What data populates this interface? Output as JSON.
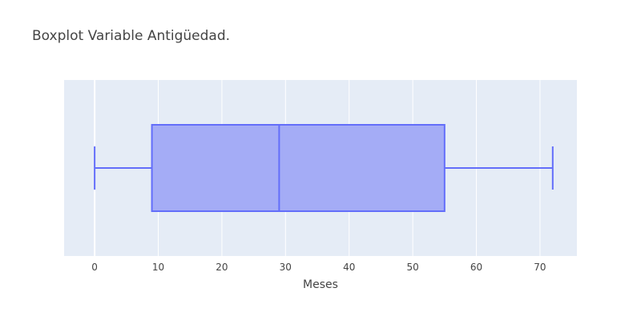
{
  "chart_data": {
    "type": "box",
    "title": "Boxplot Variable Antigüedad.",
    "xlabel": "Meses",
    "ylabel": "",
    "orientation": "horizontal",
    "xlim": [
      -4.8,
      75.8
    ],
    "xticks": [
      0,
      10,
      20,
      30,
      40,
      50,
      60,
      70
    ],
    "grid": true,
    "box": {
      "min": 0,
      "q1": 9,
      "median": 29,
      "q3": 55,
      "max": 72
    }
  },
  "colors": {
    "plot_background": "#e5ecf6",
    "grid": "#ffffff",
    "box_fill": "#a4acf6",
    "box_line": "#636efa",
    "text": "#444444"
  }
}
